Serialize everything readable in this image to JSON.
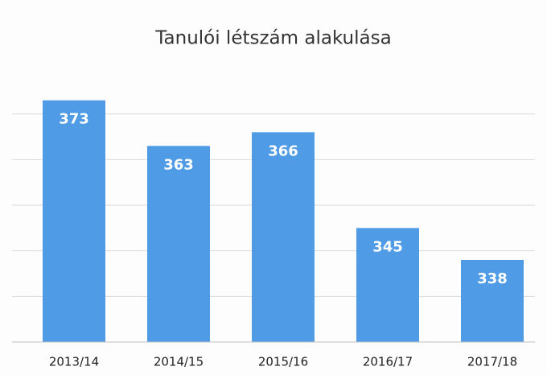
{
  "chart_data": {
    "type": "bar",
    "title": "Tanulói létszám alakulása",
    "categories": [
      "2013/14",
      "2014/15",
      "2015/16",
      "2016/17",
      "2017/18"
    ],
    "values": [
      373,
      363,
      366,
      345,
      338
    ],
    "color": "#4f9be6",
    "ylim": [
      320,
      380
    ],
    "yticks": [
      330,
      340,
      350,
      360,
      370
    ],
    "grid": true
  }
}
